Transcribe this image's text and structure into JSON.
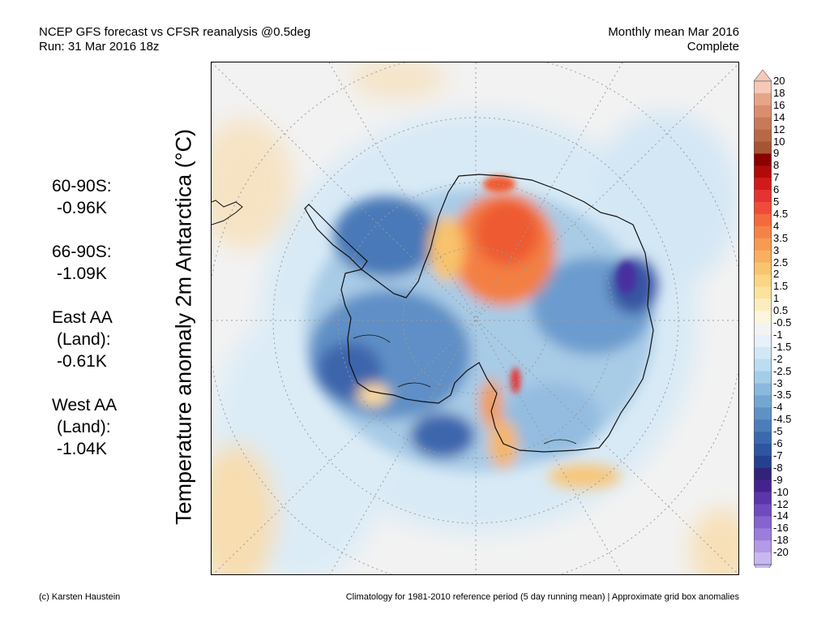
{
  "header": {
    "title_line1": "NCEP GFS forecast vs CFSR reanalysis @0.5deg",
    "title_line2": "Run: 31 Mar 2016 18z",
    "right_line1": "Monthly mean Mar 2016",
    "right_line2": "Complete"
  },
  "stats": [
    {
      "label": "60-90S:",
      "value": "-0.96K"
    },
    {
      "label": "66-90S:",
      "value": "-1.09K"
    },
    {
      "label": "East AA",
      "label2": "(Land):",
      "value": "-0.61K"
    },
    {
      "label": "West AA",
      "label2": "(Land):",
      "value": "-1.04K"
    }
  ],
  "y_axis_label": "Temperature anomaly 2m Antarctica (°C)",
  "colorbar": {
    "labels": [
      "20",
      "18",
      "16",
      "14",
      "12",
      "10",
      "9",
      "8",
      "7",
      "6",
      "5",
      "4.5",
      "4",
      "3.5",
      "3",
      "2.5",
      "2",
      "1.5",
      "1",
      "0.5",
      "-0.5",
      "-1",
      "-1.5",
      "-2",
      "-2.5",
      "-3",
      "-3.5",
      "-4",
      "-4.5",
      "-5",
      "-6",
      "-7",
      "-8",
      "-9",
      "-10",
      "-12",
      "-14",
      "-16",
      "-18",
      "-20"
    ],
    "colors": [
      "#f5c9b7",
      "#e6a588",
      "#d98e6e",
      "#c77a58",
      "#b86845",
      "#a55434",
      "#8b0000",
      "#b00a0a",
      "#d31a1a",
      "#e53232",
      "#f04b3a",
      "#f36a3e",
      "#f58347",
      "#f79a52",
      "#f8b060",
      "#f9c46e",
      "#fad584",
      "#fbe39e",
      "#fcedbf",
      "#fdf5dd",
      "#f3f3f3",
      "#e6f1fa",
      "#d1e8f5",
      "#bcdcf0",
      "#a3cde8",
      "#8ab9dd",
      "#74a6d2",
      "#5f91c6",
      "#4c7dba",
      "#3c69ad",
      "#2e559f",
      "#24418d",
      "#31237a",
      "#45238f",
      "#5b35a9",
      "#6f4bbe",
      "#8663cd",
      "#9b7ddb",
      "#b29ae6",
      "#c8b8f1"
    ]
  },
  "footer": {
    "left": "(c) Karsten Haustein",
    "right": "Climatology for 1981-2010 reference period (5 day running mean) | Approximate grid box anomalies"
  }
}
